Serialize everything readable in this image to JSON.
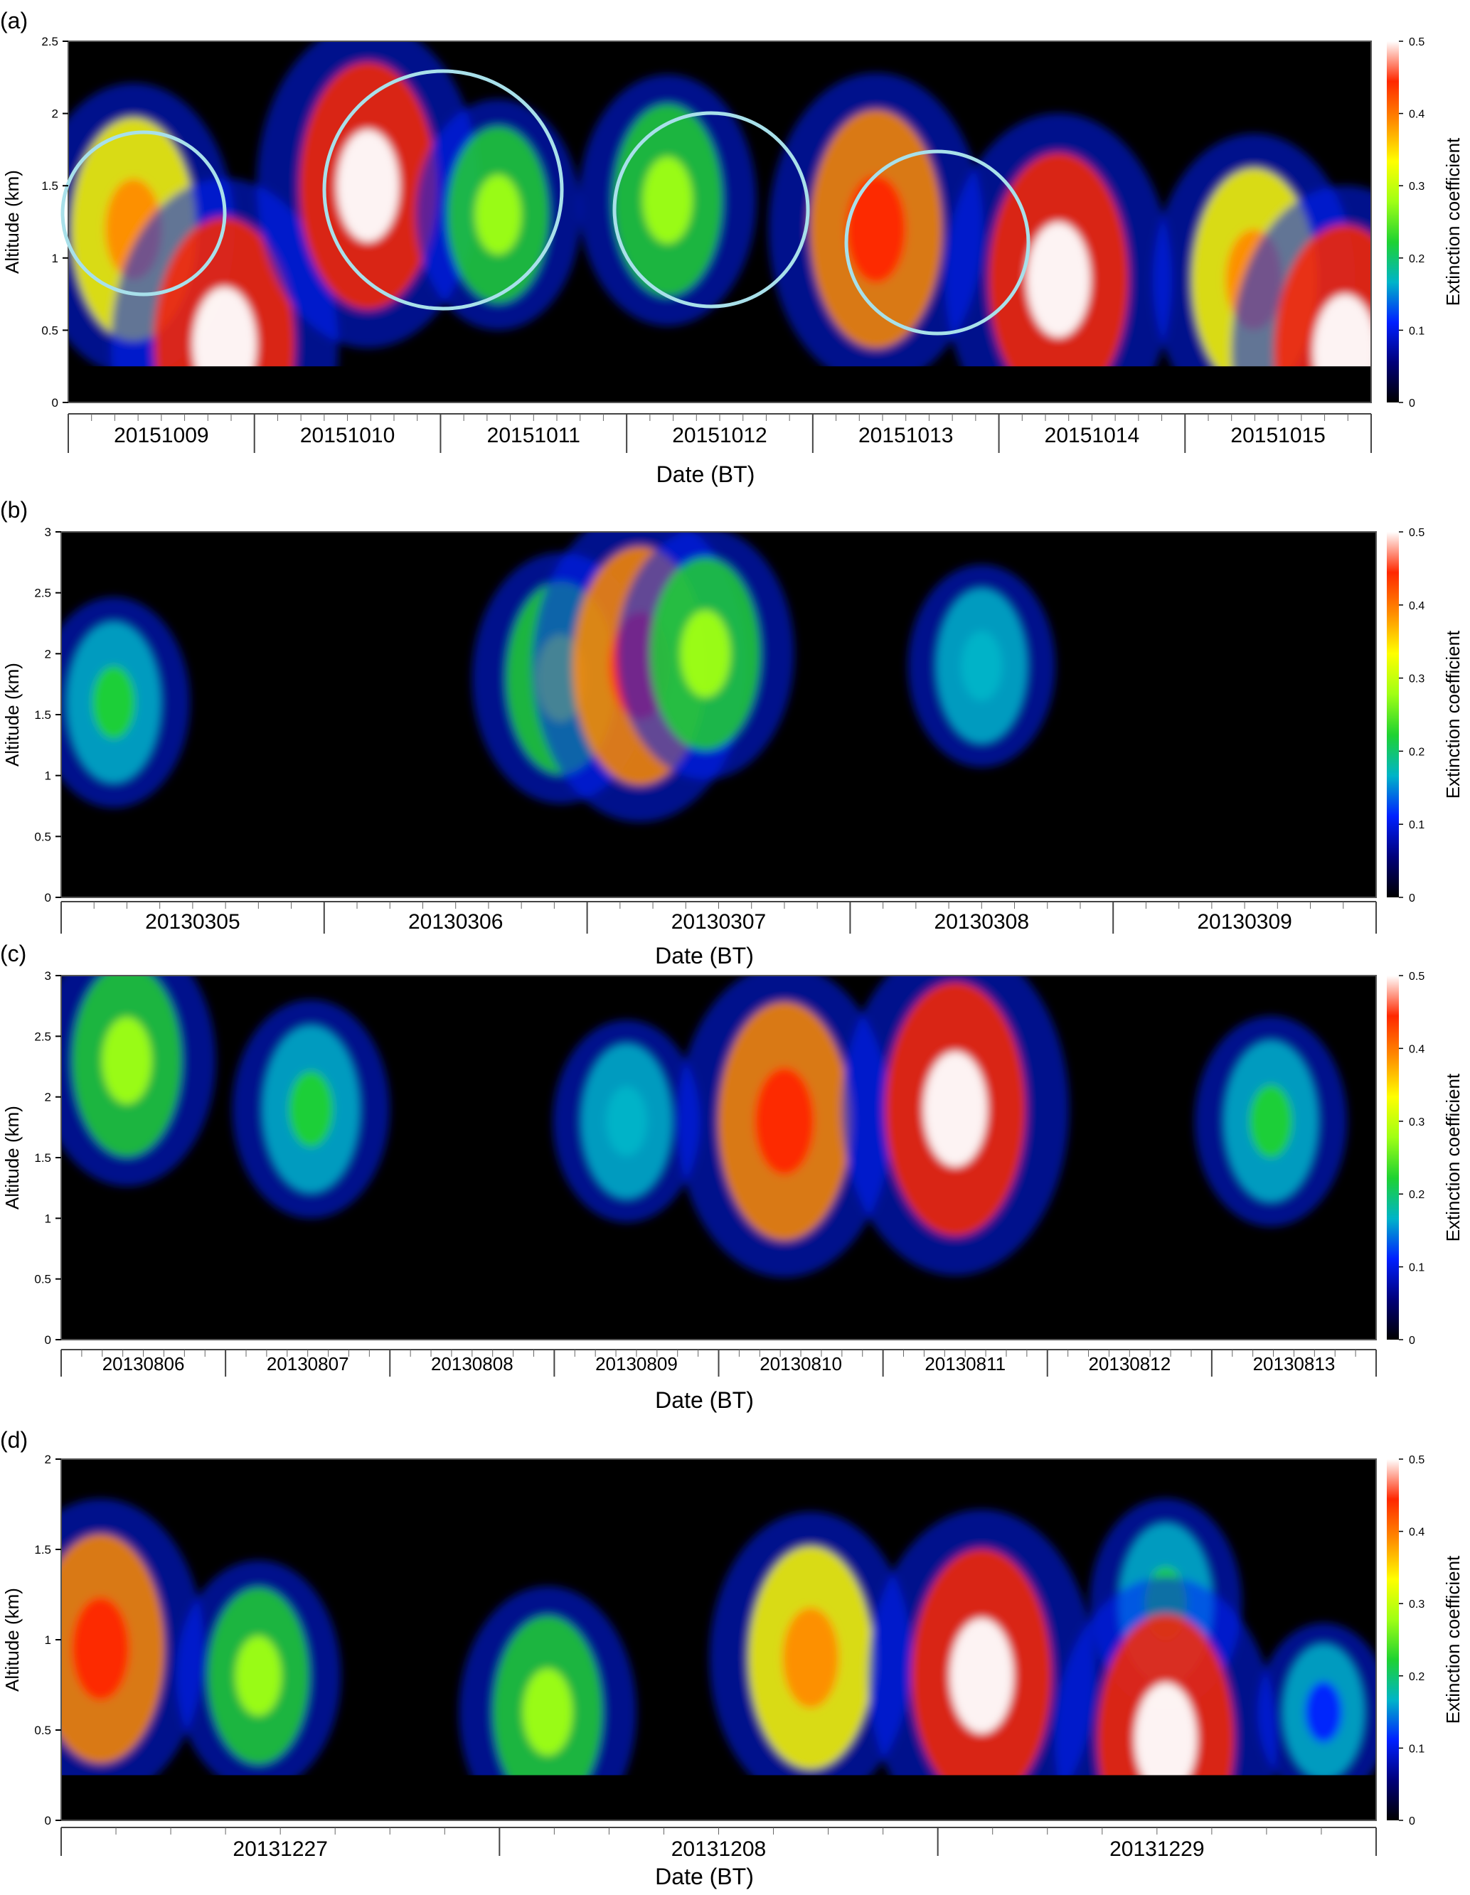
{
  "figure": {
    "background": "#ffffff",
    "colormap": [
      "#000000",
      "#00007a",
      "#0020ff",
      "#00b4c8",
      "#1ed232",
      "#a0ff14",
      "#ffff00",
      "#ff8c00",
      "#ff2800",
      "#ffffff"
    ]
  },
  "chart_data": [
    {
      "type": "heatmap",
      "panel_label": "(a)",
      "xlabel": "Date (BT)",
      "ylabel": "Altitude (km)",
      "colorbar_label": "Extinction coefficient",
      "ylim": [
        0,
        2.5
      ],
      "yticks": [
        "0",
        "0.5",
        "1",
        "1.5",
        "2",
        "2.5"
      ],
      "colorbar_ticks": [
        "0",
        "0.1",
        "0.2",
        "0.3",
        "0.4",
        "0.5"
      ],
      "clim": [
        0,
        0.5
      ],
      "x_categories": [
        "20151009",
        "20151010",
        "20151011",
        "20151012",
        "20151013",
        "20151014",
        "20151015"
      ],
      "min_altitude_data": 0.25,
      "grid": false,
      "circle_annotations_count": 4,
      "features": [
        {
          "x": 0.05,
          "alt": 1.2,
          "value": 0.4
        },
        {
          "x": 0.12,
          "alt": 0.4,
          "value": 0.55
        },
        {
          "x": 0.23,
          "alt": 1.5,
          "value": 0.48
        },
        {
          "x": 0.33,
          "alt": 1.3,
          "value": 0.25
        },
        {
          "x": 0.46,
          "alt": 1.4,
          "value": 0.3
        },
        {
          "x": 0.62,
          "alt": 1.2,
          "value": 0.45
        },
        {
          "x": 0.76,
          "alt": 0.85,
          "value": 0.55
        },
        {
          "x": 0.91,
          "alt": 0.85,
          "value": 0.4
        },
        {
          "x": 0.98,
          "alt": 0.35,
          "value": 0.55
        }
      ]
    },
    {
      "type": "heatmap",
      "panel_label": "(b)",
      "xlabel": "Date (BT)",
      "ylabel": "Altitude (km)",
      "colorbar_label": "Extinction coefficient",
      "ylim": [
        0,
        3
      ],
      "yticks": [
        "0",
        "0.5",
        "1",
        "1.5",
        "2",
        "2.5",
        "3"
      ],
      "colorbar_ticks": [
        "0",
        "0.1",
        "0.2",
        "0.3",
        "0.4",
        "0.5"
      ],
      "clim": [
        0,
        0.5
      ],
      "x_categories": [
        "20130305",
        "20130306",
        "20130307",
        "20130308",
        "20130309"
      ],
      "min_altitude_data": 0.25,
      "grid": false,
      "features": [
        {
          "x": 0.04,
          "alt": 1.6,
          "value": 0.2
        },
        {
          "x": 0.38,
          "alt": 1.8,
          "value": 0.3
        },
        {
          "x": 0.44,
          "alt": 1.9,
          "value": 0.45
        },
        {
          "x": 0.49,
          "alt": 2.0,
          "value": 0.3
        },
        {
          "x": 0.7,
          "alt": 1.9,
          "value": 0.18
        }
      ]
    },
    {
      "type": "heatmap",
      "panel_label": "(c)",
      "xlabel": "Date (BT)",
      "ylabel": "Altitude (km)",
      "colorbar_label": "Extinction coefficient",
      "ylim": [
        0,
        3
      ],
      "yticks": [
        "0",
        "0.5",
        "1",
        "1.5",
        "2",
        "2.5",
        "3"
      ],
      "colorbar_ticks": [
        "0",
        "0.1",
        "0.2",
        "0.3",
        "0.4",
        "0.5"
      ],
      "clim": [
        0,
        0.5
      ],
      "x_categories": [
        "20130806",
        "20130807",
        "20130808",
        "20130809",
        "20130810",
        "20130811",
        "20130812",
        "20130813"
      ],
      "min_altitude_data": 0.25,
      "grid": false,
      "features": [
        {
          "x": 0.05,
          "alt": 2.3,
          "value": 0.3
        },
        {
          "x": 0.19,
          "alt": 1.9,
          "value": 0.22
        },
        {
          "x": 0.43,
          "alt": 1.8,
          "value": 0.18
        },
        {
          "x": 0.55,
          "alt": 1.8,
          "value": 0.45
        },
        {
          "x": 0.68,
          "alt": 1.9,
          "value": 0.5
        },
        {
          "x": 0.92,
          "alt": 1.8,
          "value": 0.2
        }
      ]
    },
    {
      "type": "heatmap",
      "panel_label": "(d)",
      "xlabel": "Date (BT)",
      "ylabel": "Altitude (km)",
      "colorbar_label": "Extinction coefficient",
      "ylim": [
        0,
        2
      ],
      "yticks": [
        "0",
        "0.5",
        "1",
        "1.5",
        "2"
      ],
      "colorbar_ticks": [
        "0",
        "0.1",
        "0.2",
        "0.3",
        "0.4",
        "0.5"
      ],
      "clim": [
        0,
        0.5
      ],
      "x_categories": [
        "20131227",
        "20131208",
        "20131229"
      ],
      "min_altitude_data": 0.25,
      "grid": false,
      "features": [
        {
          "x": 0.03,
          "alt": 0.95,
          "value": 0.42
        },
        {
          "x": 0.15,
          "alt": 0.8,
          "value": 0.25
        },
        {
          "x": 0.37,
          "alt": 0.6,
          "value": 0.3
        },
        {
          "x": 0.57,
          "alt": 0.9,
          "value": 0.4
        },
        {
          "x": 0.7,
          "alt": 0.8,
          "value": 0.5
        },
        {
          "x": 0.84,
          "alt": 1.2,
          "value": 0.2
        },
        {
          "x": 0.84,
          "alt": 0.45,
          "value": 0.48
        },
        {
          "x": 0.96,
          "alt": 0.6,
          "value": 0.12
        }
      ]
    }
  ]
}
